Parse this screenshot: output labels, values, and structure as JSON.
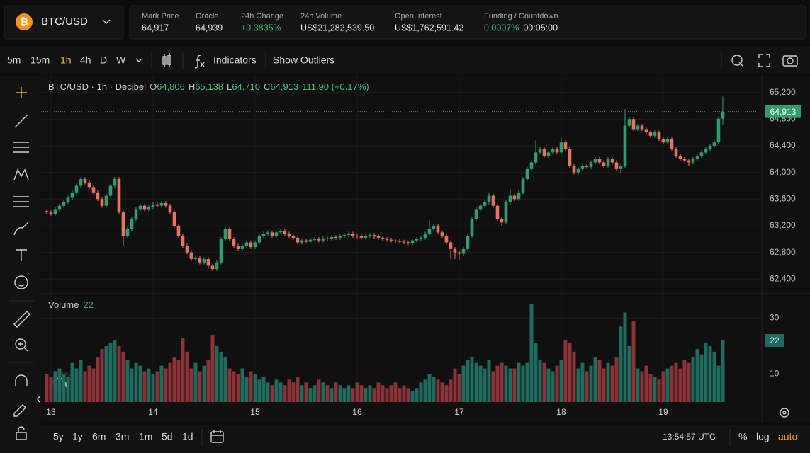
{
  "header": {
    "icon": "₿",
    "symbol": "BTC/USD",
    "stats": [
      {
        "label": "Mark Price",
        "value": "64,917"
      },
      {
        "label": "Oracle",
        "value": "64,939"
      },
      {
        "label": "24h Change",
        "value": "+0.3835%",
        "tone": "up"
      },
      {
        "label": "24h Volume",
        "value": "US$21,282,539.50"
      },
      {
        "label": "Open Interest",
        "value": "US$1,762,591.42"
      },
      {
        "label": "Funding / Countdown",
        "value": "0.0007%",
        "tone": "up",
        "extra": "00:05:00"
      }
    ]
  },
  "toolbar": {
    "intervals": [
      "5m",
      "15m",
      "1h",
      "4h",
      "D",
      "W"
    ],
    "active_interval": "1h",
    "indicators": "Indicators",
    "outliers": "Show Outliers"
  },
  "chart_data": {
    "type": "candlestick",
    "title": "BTC/USD · 1h · Decibel",
    "ohlc_labels": [
      {
        "label": "O",
        "value": "64,806"
      },
      {
        "label": "H",
        "value": "65,138"
      },
      {
        "label": "L",
        "value": "64,710"
      },
      {
        "label": "C",
        "value": "64,913"
      }
    ],
    "change": "111.90 (+0.17%)",
    "last_price_label": "64,913",
    "up_color": "#2f9e6e",
    "down_color": "#e8735f",
    "open": [
      63420,
      63400,
      63380,
      63450,
      63500,
      63560,
      63620,
      63700,
      63800,
      63900,
      63850,
      63780,
      63700,
      63600,
      63500,
      63650,
      63800,
      63900,
      63400,
      63050,
      63150,
      63300,
      63450,
      63500,
      63450,
      63480,
      63520,
      63500,
      63540,
      63500,
      63400,
      63200,
      63050,
      62900,
      62800,
      62700,
      62720,
      62650,
      62700,
      62600,
      62550,
      62650,
      63000,
      63150,
      63000,
      62900,
      62850,
      62900,
      62950,
      62880,
      62950,
      63050,
      63080,
      63100,
      63050,
      63100,
      63120,
      63080,
      63050,
      63020,
      62950,
      62980,
      62960,
      62990,
      63000,
      62980,
      63010,
      63000,
      63030,
      63020,
      63050,
      63060,
      63080,
      63050,
      63040,
      63020,
      63050,
      63060,
      63040,
      63020,
      63000,
      62990,
      62980,
      62970,
      62960,
      62950,
      62940,
      62980,
      63000,
      63020,
      63080,
      63150,
      63200,
      63100,
      63050,
      62950,
      62850,
      62800,
      62780,
      62850,
      63050,
      63300,
      63450,
      63500,
      63550,
      63650,
      63500,
      63300,
      63250,
      63550,
      63650,
      63600,
      63700,
      63900,
      64050,
      64150,
      64300,
      64350,
      64250,
      64300,
      64350,
      64300,
      64450,
      64350,
      64100,
      64000,
      64050,
      64100,
      64080,
      64150,
      64200,
      64150,
      64100,
      64200,
      64150,
      64050,
      64100,
      64700,
      64800,
      64650,
      64700,
      64650,
      64600,
      64550,
      64600,
      64500,
      64450,
      64500,
      64350,
      64250,
      64200,
      64180,
      64150,
      64200,
      64250,
      64300,
      64350,
      64400,
      64450,
      64806
    ],
    "high": [
      63450,
      63430,
      63480,
      63530,
      63590,
      63650,
      63730,
      63830,
      63930,
      63930,
      63880,
      63810,
      63730,
      63630,
      63680,
      63830,
      63930,
      63930,
      63430,
      63180,
      63330,
      63480,
      63530,
      63530,
      63510,
      63550,
      63550,
      63570,
      63570,
      63530,
      63430,
      63230,
      63080,
      62930,
      62830,
      62750,
      62750,
      62730,
      62730,
      62630,
      62680,
      63030,
      63180,
      63180,
      63030,
      62930,
      62930,
      62980,
      62980,
      62980,
      63080,
      63110,
      63130,
      63130,
      63130,
      63150,
      63150,
      63110,
      63080,
      63050,
      63010,
      63010,
      63020,
      63030,
      63030,
      63040,
      63040,
      63060,
      63060,
      63080,
      63090,
      63110,
      63110,
      63080,
      63070,
      63080,
      63090,
      63090,
      63070,
      63050,
      63030,
      63020,
      63010,
      63000,
      62990,
      62980,
      63010,
      63030,
      63050,
      63110,
      63280,
      63230,
      63230,
      63130,
      63080,
      62980,
      62880,
      62830,
      62880,
      63080,
      63330,
      63480,
      63530,
      63580,
      63700,
      63680,
      63530,
      63330,
      63580,
      63750,
      63680,
      63730,
      63930,
      64080,
      64180,
      64480,
      64380,
      64380,
      64330,
      64380,
      64380,
      64520,
      64480,
      64380,
      64130,
      64080,
      64130,
      64130,
      64180,
      64230,
      64230,
      64180,
      64230,
      64230,
      64180,
      64130,
      64950,
      64830,
      64830,
      64730,
      64730,
      64680,
      64630,
      64630,
      64630,
      64530,
      64530,
      64530,
      64380,
      64280,
      64230,
      64210,
      64230,
      64280,
      64330,
      64380,
      64430,
      64480,
      64840,
      65138
    ],
    "low": [
      63370,
      63350,
      63350,
      63420,
      63470,
      63530,
      63590,
      63670,
      63770,
      63820,
      63750,
      63670,
      63570,
      63470,
      63470,
      63620,
      63770,
      63370,
      62900,
      63020,
      63120,
      63270,
      63420,
      63420,
      63420,
      63450,
      63470,
      63470,
      63470,
      63370,
      63170,
      63020,
      62870,
      62770,
      62670,
      62670,
      62620,
      62620,
      62570,
      62520,
      62520,
      62620,
      62970,
      62970,
      62870,
      62820,
      62820,
      62870,
      62850,
      62850,
      62920,
      63020,
      63050,
      63020,
      63020,
      63070,
      63050,
      63020,
      62990,
      62920,
      62920,
      62930,
      62930,
      62960,
      62950,
      62950,
      62970,
      62970,
      62990,
      62990,
      63020,
      63030,
      63020,
      63010,
      62990,
      62990,
      63020,
      63010,
      62990,
      62970,
      62960,
      62950,
      62940,
      62930,
      62920,
      62910,
      62910,
      62950,
      62970,
      62990,
      63050,
      63120,
      63070,
      63020,
      62920,
      62700,
      62700,
      62680,
      62750,
      62820,
      63020,
      63270,
      63420,
      63470,
      63520,
      63470,
      63270,
      63200,
      63220,
      63520,
      63570,
      63570,
      63670,
      63870,
      64020,
      64120,
      64270,
      64220,
      64220,
      64270,
      64270,
      64270,
      64320,
      64070,
      63970,
      63970,
      64020,
      64050,
      64050,
      64120,
      64120,
      64070,
      64070,
      64120,
      64020,
      63980,
      64070,
      64670,
      64620,
      64620,
      64620,
      64570,
      64520,
      64520,
      64470,
      64420,
      64420,
      64320,
      64220,
      64170,
      64150,
      64100,
      64120,
      64170,
      64220,
      64270,
      64320,
      64370,
      64420,
      64710
    ],
    "close": [
      63400,
      63380,
      63450,
      63500,
      63560,
      63620,
      63700,
      63800,
      63900,
      63850,
      63780,
      63700,
      63600,
      63500,
      63650,
      63800,
      63900,
      63400,
      63050,
      63150,
      63300,
      63450,
      63500,
      63450,
      63480,
      63520,
      63500,
      63540,
      63500,
      63400,
      63200,
      63050,
      62900,
      62800,
      62700,
      62720,
      62650,
      62700,
      62600,
      62550,
      62650,
      63000,
      63150,
      63000,
      62900,
      62850,
      62900,
      62950,
      62880,
      62950,
      63050,
      63080,
      63100,
      63050,
      63100,
      63120,
      63080,
      63050,
      63020,
      62950,
      62980,
      62960,
      62990,
      63000,
      62980,
      63010,
      63000,
      63030,
      63020,
      63050,
      63060,
      63080,
      63050,
      63040,
      63020,
      63050,
      63060,
      63040,
      63020,
      63000,
      62990,
      62980,
      62970,
      62960,
      62950,
      62940,
      62980,
      63000,
      63020,
      63080,
      63150,
      63200,
      63100,
      63050,
      62950,
      62850,
      62800,
      62780,
      62850,
      63050,
      63300,
      63450,
      63500,
      63550,
      63650,
      63500,
      63300,
      63250,
      63550,
      63650,
      63600,
      63700,
      63900,
      64050,
      64150,
      64300,
      64350,
      64250,
      64300,
      64350,
      64300,
      64450,
      64350,
      64100,
      64000,
      64050,
      64100,
      64080,
      64150,
      64200,
      64150,
      64100,
      64200,
      64150,
      64050,
      64100,
      64700,
      64800,
      64650,
      64700,
      64650,
      64600,
      64550,
      64600,
      64500,
      64450,
      64500,
      64350,
      64250,
      64200,
      64180,
      64150,
      64200,
      64250,
      64300,
      64350,
      64400,
      64450,
      64806,
      64913
    ],
    "ylim": [
      62180,
      65440
    ],
    "yticks": [
      {
        "value": 62400,
        "label": "62,400"
      },
      {
        "value": 62800,
        "label": "62,800"
      },
      {
        "value": 63200,
        "label": "63,200"
      },
      {
        "value": 63600,
        "label": "63,600"
      },
      {
        "value": 64000,
        "label": "64,000"
      },
      {
        "value": 64400,
        "label": "64,400"
      },
      {
        "value": 64800,
        "label": "64,800"
      },
      {
        "value": 65200,
        "label": "65,200"
      }
    ],
    "xlim": [
      -1.33,
      168.17
    ],
    "xticks": [
      {
        "value": 1,
        "label": "13"
      },
      {
        "value": 25,
        "label": "14"
      },
      {
        "value": 49,
        "label": "15"
      },
      {
        "value": 73,
        "label": "16"
      },
      {
        "value": 97,
        "label": "17"
      },
      {
        "value": 121,
        "label": "18"
      },
      {
        "value": 145,
        "label": "19"
      }
    ],
    "grid": true,
    "volume": {
      "title": "Volume",
      "last_label": "22",
      "up_color": "#1f6b5e",
      "down_color": "#8c3238",
      "ylim": [
        0,
        38.7
      ],
      "yticks": [
        10,
        30
      ],
      "values": [
        10,
        9,
        11,
        12,
        10,
        9,
        14,
        12,
        15,
        11,
        13,
        12,
        16,
        19,
        20,
        21,
        22,
        20,
        18,
        15,
        12,
        14,
        13,
        11,
        12,
        10,
        11,
        13,
        12,
        14,
        16,
        15,
        23,
        18,
        12,
        14,
        11,
        13,
        15,
        24,
        20,
        18,
        16,
        12,
        11,
        10,
        12,
        9,
        11,
        10,
        8,
        9,
        7,
        6,
        8,
        7,
        6,
        8,
        7,
        9,
        6,
        7,
        5,
        6,
        8,
        7,
        6,
        5,
        7,
        6,
        5,
        6,
        5,
        7,
        6,
        5,
        6,
        5,
        7,
        6,
        5,
        6,
        7,
        5,
        6,
        5,
        4,
        5,
        7,
        8,
        10,
        9,
        8,
        7,
        6,
        8,
        12,
        10,
        13,
        15,
        16,
        14,
        13,
        12,
        15,
        11,
        13,
        14,
        13,
        12,
        12,
        14,
        13,
        14,
        35,
        21,
        15,
        14,
        12,
        11,
        13,
        15,
        22,
        21,
        18,
        12,
        14,
        11,
        13,
        16,
        15,
        12,
        14,
        13,
        16,
        27,
        32,
        20,
        29,
        12,
        11,
        13,
        10,
        9,
        8,
        11,
        12,
        13,
        14,
        12,
        15,
        14,
        16,
        19,
        17,
        21,
        20,
        18,
        13,
        22
      ]
    }
  },
  "bottom": {
    "ranges": [
      "5y",
      "1y",
      "6m",
      "3m",
      "1m",
      "5d",
      "1d"
    ],
    "time": "13:54:57 UTC",
    "percent": "%",
    "log": "log",
    "auto": "auto"
  }
}
